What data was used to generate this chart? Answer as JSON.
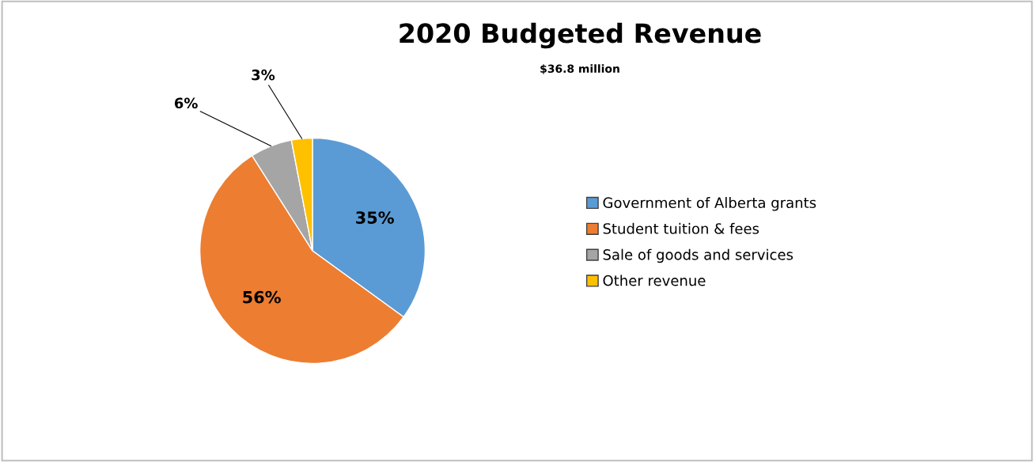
{
  "chart_data": {
    "type": "pie",
    "title": "2020 Budgeted Revenue",
    "subtitle": "$36.8 million",
    "categories": [
      "Government of Alberta grants",
      "Student tuition & fees",
      "Sale of goods and services",
      "Other revenue"
    ],
    "values": [
      35,
      56,
      6,
      3
    ],
    "colors": [
      "#5b9bd5",
      "#ed7d31",
      "#a5a5a5",
      "#ffc000"
    ],
    "value_labels": [
      "35%",
      "56%",
      "6%",
      "3%"
    ],
    "legend": "right"
  }
}
